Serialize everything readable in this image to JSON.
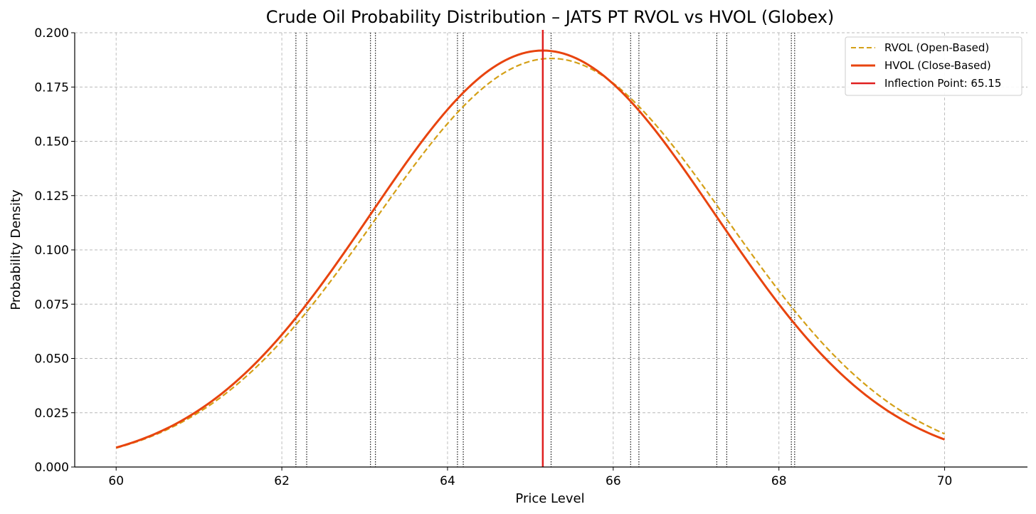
{
  "chart_data": {
    "type": "line",
    "title": "Crude Oil Probability Distribution – JATS PT RVOL vs HVOL (Globex)",
    "xlabel": "Price Level",
    "ylabel": "Probability Density",
    "xlim": [
      59.5,
      71.0
    ],
    "ylim": [
      0,
      0.2
    ],
    "xticks": [
      60,
      62,
      64,
      66,
      68,
      70
    ],
    "xtick_labels": [
      "60",
      "62",
      "64",
      "66",
      "68",
      "70"
    ],
    "yticks": [
      0,
      0.025,
      0.05,
      0.075,
      0.1,
      0.125,
      0.15,
      0.175,
      0.2
    ],
    "ytick_labels": [
      "0.000",
      "0.025",
      "0.050",
      "0.075",
      "0.100",
      "0.125",
      "0.150",
      "0.175",
      "0.200"
    ],
    "grid": true,
    "legend_position": "top-right",
    "x_range": [
      60,
      70
    ],
    "series": [
      {
        "name": "RVOL (Open-Based)",
        "style": "dashed",
        "color": "#d4a017",
        "distribution": "normal",
        "mean": 65.25,
        "sd": 2.12
      },
      {
        "name": "HVOL (Close-Based)",
        "style": "solid",
        "color": "#e8440f",
        "distribution": "normal",
        "mean": 65.15,
        "sd": 2.08
      }
    ],
    "inflection_line": {
      "name": "Inflection Point: 65.15",
      "x": 65.15,
      "color": "#e02020"
    },
    "level_lines": [
      62.17,
      62.3,
      63.07,
      63.13,
      64.12,
      64.19,
      65.25,
      66.21,
      66.31,
      67.25,
      67.37,
      68.15,
      68.19
    ]
  }
}
